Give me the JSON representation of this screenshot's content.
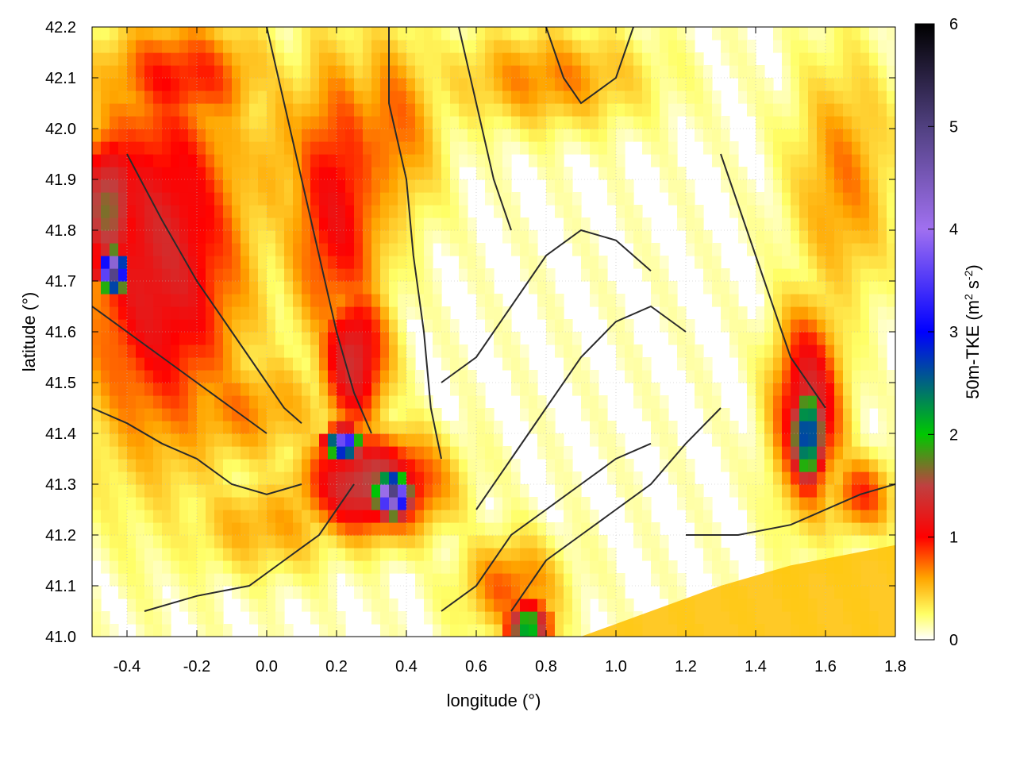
{
  "chart_data": {
    "type": "heatmap",
    "title": "",
    "xlabel": "longitude (°)",
    "ylabel": "latitude (°)",
    "xlim": [
      -0.5,
      1.8
    ],
    "ylim": [
      41.0,
      42.2
    ],
    "x_ticks": [
      "-0.4",
      "-0.2",
      "0.0",
      "0.2",
      "0.4",
      "0.6",
      "0.8",
      "1.0",
      "1.2",
      "1.4",
      "1.6",
      "1.8"
    ],
    "y_ticks": [
      "41.0",
      "41.1",
      "41.2",
      "41.3",
      "41.4",
      "41.5",
      "41.6",
      "41.7",
      "41.8",
      "41.9",
      "42.0",
      "42.1",
      "42.2"
    ],
    "grid": true,
    "colorbar": {
      "label_main": "50m-TKE (m",
      "sup1": "2",
      "label_mid": " s",
      "sup2": "-2",
      "label_end": ")",
      "range": [
        0,
        6
      ],
      "ticks": [
        "0",
        "1",
        "2",
        "3",
        "4",
        "5",
        "6"
      ],
      "stops": [
        {
          "v": 0.0,
          "c": "#ffffff"
        },
        {
          "v": 0.25,
          "c": "#ffff66"
        },
        {
          "v": 0.6,
          "c": "#ffa500"
        },
        {
          "v": 1.0,
          "c": "#ff0000"
        },
        {
          "v": 1.5,
          "c": "#c04040"
        },
        {
          "v": 2.0,
          "c": "#00c800"
        },
        {
          "v": 3.0,
          "c": "#0000ff"
        },
        {
          "v": 4.0,
          "c": "#a070f0"
        },
        {
          "v": 5.0,
          "c": "#504080"
        },
        {
          "v": 6.0,
          "c": "#000000"
        }
      ]
    },
    "field_features": [
      {
        "lon": -0.3,
        "lat": 41.75,
        "sx": 0.25,
        "sy": 0.4,
        "v": 1.2
      },
      {
        "lon": -0.45,
        "lat": 41.85,
        "sx": 0.1,
        "sy": 0.15,
        "v": 1.6
      },
      {
        "lon": -0.44,
        "lat": 41.72,
        "sx": 0.04,
        "sy": 0.04,
        "v": 5.0
      },
      {
        "lon": -0.25,
        "lat": 42.1,
        "sx": 0.25,
        "sy": 0.12,
        "v": 0.9
      },
      {
        "lon": 0.05,
        "lat": 41.95,
        "sx": 0.15,
        "sy": 0.2,
        "v": 0.5
      },
      {
        "lon": -0.1,
        "lat": 41.45,
        "sx": 0.3,
        "sy": 0.12,
        "v": 0.6
      },
      {
        "lon": 0.2,
        "lat": 41.85,
        "sx": 0.15,
        "sy": 0.3,
        "v": 1.0
      },
      {
        "lon": 0.25,
        "lat": 41.55,
        "sx": 0.1,
        "sy": 0.15,
        "v": 1.3
      },
      {
        "lon": 0.3,
        "lat": 41.3,
        "sx": 0.2,
        "sy": 0.1,
        "v": 1.5
      },
      {
        "lon": 0.22,
        "lat": 41.38,
        "sx": 0.05,
        "sy": 0.03,
        "v": 4.0
      },
      {
        "lon": 0.36,
        "lat": 41.28,
        "sx": 0.05,
        "sy": 0.04,
        "v": 5.0
      },
      {
        "lon": 0.0,
        "lat": 41.22,
        "sx": 0.25,
        "sy": 0.1,
        "v": 0.5
      },
      {
        "lon": 0.35,
        "lat": 42.0,
        "sx": 0.15,
        "sy": 0.2,
        "v": 0.7
      },
      {
        "lon": 0.8,
        "lat": 42.1,
        "sx": 0.3,
        "sy": 0.1,
        "v": 0.6
      },
      {
        "lon": 1.55,
        "lat": 41.45,
        "sx": 0.1,
        "sy": 0.2,
        "v": 1.3
      },
      {
        "lon": 1.55,
        "lat": 41.4,
        "sx": 0.05,
        "sy": 0.1,
        "v": 2.8
      },
      {
        "lon": 1.65,
        "lat": 41.9,
        "sx": 0.15,
        "sy": 0.25,
        "v": 0.6
      },
      {
        "lon": 0.7,
        "lat": 41.1,
        "sx": 0.15,
        "sy": 0.1,
        "v": 0.7
      },
      {
        "lon": 0.75,
        "lat": 41.02,
        "sx": 0.06,
        "sy": 0.05,
        "v": 2.2
      },
      {
        "lon": 1.7,
        "lat": 41.28,
        "sx": 0.1,
        "sy": 0.08,
        "v": 0.8
      }
    ],
    "contours": [
      [
        [
          -0.4,
          41.95
        ],
        [
          -0.3,
          41.82
        ],
        [
          -0.2,
          41.7
        ],
        [
          -0.1,
          41.6
        ],
        [
          0.0,
          41.5
        ],
        [
          0.05,
          41.45
        ],
        [
          0.1,
          41.42
        ]
      ],
      [
        [
          -0.5,
          41.45
        ],
        [
          -0.4,
          41.42
        ],
        [
          -0.3,
          41.38
        ],
        [
          -0.2,
          41.35
        ],
        [
          -0.1,
          41.3
        ],
        [
          0.0,
          41.28
        ],
        [
          0.1,
          41.3
        ]
      ],
      [
        [
          0.0,
          42.2
        ],
        [
          0.05,
          42.05
        ],
        [
          0.1,
          41.9
        ],
        [
          0.15,
          41.75
        ],
        [
          0.2,
          41.6
        ],
        [
          0.25,
          41.48
        ],
        [
          0.3,
          41.4
        ]
      ],
      [
        [
          0.35,
          42.2
        ],
        [
          0.35,
          42.05
        ],
        [
          0.4,
          41.9
        ],
        [
          0.42,
          41.75
        ],
        [
          0.45,
          41.6
        ],
        [
          0.47,
          41.45
        ],
        [
          0.5,
          41.35
        ]
      ],
      [
        [
          0.5,
          41.5
        ],
        [
          0.6,
          41.55
        ],
        [
          0.7,
          41.65
        ],
        [
          0.8,
          41.75
        ],
        [
          0.9,
          41.8
        ],
        [
          1.0,
          41.78
        ],
        [
          1.1,
          41.72
        ]
      ],
      [
        [
          0.6,
          41.25
        ],
        [
          0.7,
          41.35
        ],
        [
          0.8,
          41.45
        ],
        [
          0.9,
          41.55
        ],
        [
          1.0,
          41.62
        ],
        [
          1.1,
          41.65
        ],
        [
          1.2,
          41.6
        ]
      ],
      [
        [
          0.5,
          41.05
        ],
        [
          0.6,
          41.1
        ],
        [
          0.7,
          41.2
        ],
        [
          0.8,
          41.25
        ],
        [
          0.9,
          41.3
        ],
        [
          1.0,
          41.35
        ],
        [
          1.1,
          41.38
        ]
      ],
      [
        [
          0.7,
          41.05
        ],
        [
          0.8,
          41.15
        ],
        [
          0.9,
          41.2
        ],
        [
          1.0,
          41.25
        ],
        [
          1.1,
          41.3
        ],
        [
          1.2,
          41.38
        ],
        [
          1.3,
          41.45
        ]
      ],
      [
        [
          1.3,
          41.95
        ],
        [
          1.35,
          41.85
        ],
        [
          1.4,
          41.75
        ],
        [
          1.45,
          41.65
        ],
        [
          1.5,
          41.55
        ],
        [
          1.55,
          41.5
        ],
        [
          1.6,
          41.45
        ]
      ],
      [
        [
          0.8,
          42.2
        ],
        [
          0.85,
          42.1
        ],
        [
          0.9,
          42.05
        ],
        [
          1.0,
          42.1
        ],
        [
          1.05,
          42.2
        ]
      ],
      [
        [
          0.25,
          41.3
        ],
        [
          0.2,
          41.25
        ],
        [
          0.15,
          41.2
        ],
        [
          0.05,
          41.15
        ],
        [
          -0.05,
          41.1
        ],
        [
          -0.2,
          41.08
        ],
        [
          -0.35,
          41.05
        ]
      ],
      [
        [
          1.2,
          41.2
        ],
        [
          1.35,
          41.2
        ],
        [
          1.5,
          41.22
        ],
        [
          1.6,
          41.25
        ],
        [
          1.7,
          41.28
        ],
        [
          1.8,
          41.3
        ]
      ],
      [
        [
          -0.5,
          41.65
        ],
        [
          -0.4,
          41.6
        ],
        [
          -0.3,
          41.55
        ],
        [
          -0.2,
          41.5
        ],
        [
          -0.1,
          41.45
        ],
        [
          0.0,
          41.4
        ]
      ],
      [
        [
          0.55,
          42.2
        ],
        [
          0.6,
          42.05
        ],
        [
          0.65,
          41.9
        ],
        [
          0.7,
          41.8
        ]
      ]
    ],
    "coast": [
      [
        0.9,
        41.0
      ],
      [
        1.1,
        41.05
      ],
      [
        1.3,
        41.1
      ],
      [
        1.5,
        41.14
      ],
      [
        1.65,
        41.16
      ],
      [
        1.8,
        41.18
      ]
    ]
  }
}
